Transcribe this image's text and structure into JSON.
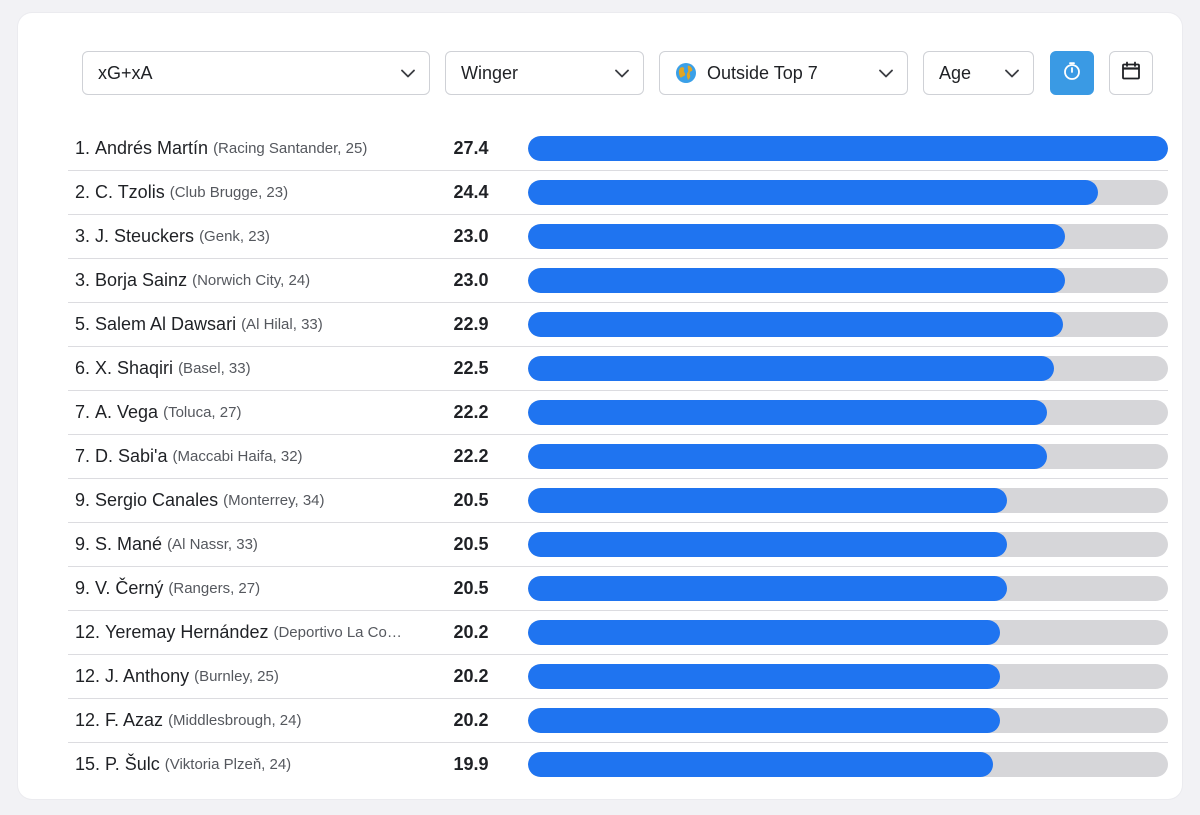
{
  "filters": {
    "metric": "xG+xA",
    "position": "Winger",
    "league": "Outside Top 7",
    "age": "Age"
  },
  "icons": {
    "timer": "stopwatch-icon",
    "calendar": "calendar-icon",
    "globe": "globe-icon",
    "chevron": "chevron-down-icon"
  },
  "colors": {
    "bar_fill": "#1f74f0",
    "bar_track": "#d6d6d9",
    "active_button": "#3a9ae4"
  },
  "scale_max": 27.4,
  "players": [
    {
      "rank": "1.",
      "name": "Andrés Martín",
      "meta": "(Racing Santander, 25)",
      "value": "27.4",
      "num": 27.4
    },
    {
      "rank": "2.",
      "name": "C. Tzolis",
      "meta": "(Club Brugge, 23)",
      "value": "24.4",
      "num": 24.4
    },
    {
      "rank": "3.",
      "name": "J. Steuckers",
      "meta": "(Genk, 23)",
      "value": "23.0",
      "num": 23.0
    },
    {
      "rank": "3.",
      "name": "Borja Sainz",
      "meta": "(Norwich City, 24)",
      "value": "23.0",
      "num": 23.0
    },
    {
      "rank": "5.",
      "name": "Salem Al Dawsari",
      "meta": "(Al Hilal, 33)",
      "value": "22.9",
      "num": 22.9
    },
    {
      "rank": "6.",
      "name": "X. Shaqiri",
      "meta": "(Basel, 33)",
      "value": "22.5",
      "num": 22.5
    },
    {
      "rank": "7.",
      "name": "A. Vega",
      "meta": "(Toluca, 27)",
      "value": "22.2",
      "num": 22.2
    },
    {
      "rank": "7.",
      "name": "D. Sabi'a",
      "meta": "(Maccabi Haifa, 32)",
      "value": "22.2",
      "num": 22.2
    },
    {
      "rank": "9.",
      "name": "Sergio Canales",
      "meta": "(Monterrey, 34)",
      "value": "20.5",
      "num": 20.5
    },
    {
      "rank": "9.",
      "name": "S. Mané",
      "meta": "(Al Nassr, 33)",
      "value": "20.5",
      "num": 20.5
    },
    {
      "rank": "9.",
      "name": "V. Černý",
      "meta": "(Rangers, 27)",
      "value": "20.5",
      "num": 20.5
    },
    {
      "rank": "12.",
      "name": "Yeremay Hernández",
      "meta": "(Deportivo La Co…",
      "value": "20.2",
      "num": 20.2
    },
    {
      "rank": "12.",
      "name": "J. Anthony",
      "meta": "(Burnley, 25)",
      "value": "20.2",
      "num": 20.2
    },
    {
      "rank": "12.",
      "name": "F. Azaz",
      "meta": "(Middlesbrough, 24)",
      "value": "20.2",
      "num": 20.2
    },
    {
      "rank": "15.",
      "name": "P. Šulc",
      "meta": "(Viktoria Plzeň, 24)",
      "value": "19.9",
      "num": 19.9
    }
  ]
}
